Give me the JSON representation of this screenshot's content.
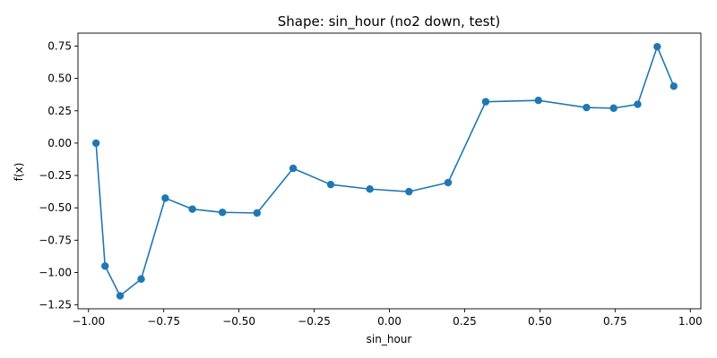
{
  "chart_data": {
    "type": "line",
    "title": "Shape: sin_hour (no2 down, test)",
    "xlabel": "sin_hour",
    "ylabel": "f(x)",
    "xlim": [
      -1.035,
      1.035
    ],
    "ylim": [
      -1.28,
      0.85
    ],
    "grid": false,
    "x_ticks": [
      -1.0,
      -0.75,
      -0.5,
      -0.25,
      0.0,
      0.25,
      0.5,
      0.75,
      1.0
    ],
    "x_tick_labels": [
      "−1.00",
      "−0.75",
      "−0.50",
      "−0.25",
      "0.00",
      "0.25",
      "0.50",
      "0.75",
      "1.00"
    ],
    "y_ticks": [
      -1.25,
      -1.0,
      -0.75,
      -0.5,
      -0.25,
      0.0,
      0.25,
      0.5,
      0.75
    ],
    "y_tick_labels": [
      "−1.25",
      "−1.00",
      "−0.75",
      "−0.50",
      "−0.25",
      "0.00",
      "0.25",
      "0.50",
      "0.75"
    ],
    "series": [
      {
        "color": "#1f77b4",
        "marker": "circle",
        "x": [
          -0.975,
          -0.945,
          -0.895,
          -0.825,
          -0.745,
          -0.655,
          -0.555,
          -0.44,
          -0.32,
          -0.195,
          -0.065,
          0.065,
          0.195,
          0.32,
          0.495,
          0.655,
          0.745,
          0.825,
          0.89,
          0.945
        ],
        "y": [
          0.0,
          -0.95,
          -1.18,
          -1.05,
          -0.425,
          -0.51,
          -0.535,
          -0.54,
          -0.195,
          -0.32,
          -0.355,
          -0.375,
          -0.305,
          0.32,
          0.33,
          0.275,
          0.27,
          0.3,
          0.745,
          0.44
        ]
      }
    ]
  }
}
